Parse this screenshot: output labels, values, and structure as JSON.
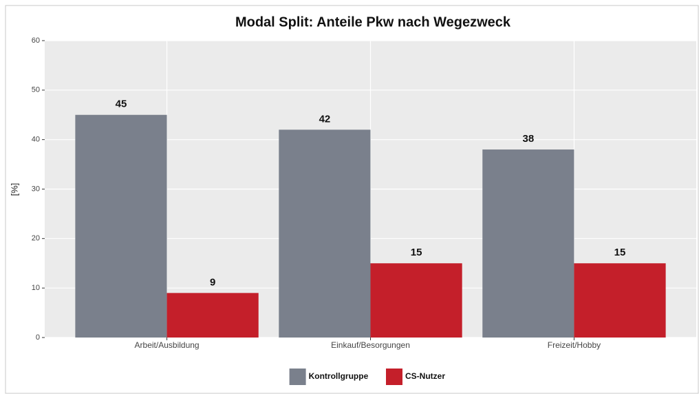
{
  "chart_data": {
    "type": "bar",
    "title": "Modal Split: Anteile Pkw nach Wegezweck",
    "y_label": "[%]",
    "categories": [
      "Arbeit/Ausbildung",
      "Einkauf/Besorgungen",
      "Freizeit/Hobby"
    ],
    "series": [
      {
        "name": "Kontrollgruppe",
        "color": "#7a808c",
        "values": [
          45,
          42,
          38
        ]
      },
      {
        "name": "CS-Nutzer",
        "color": "#c41f2a",
        "values": [
          9,
          15,
          15
        ]
      }
    ],
    "ylim": [
      0,
      60
    ],
    "yticks": [
      0,
      10,
      20,
      30,
      40,
      50,
      60
    ],
    "grid": true,
    "legend": "bottom"
  }
}
